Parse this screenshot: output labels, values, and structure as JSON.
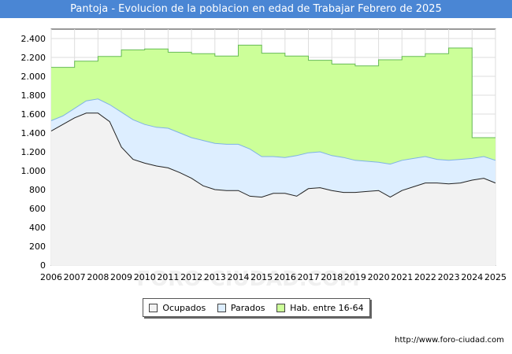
{
  "title": "Pantoja - Evolucion de la poblacion en edad de Trabajar Febrero de 2025",
  "source": "http://www.foro-ciudad.com",
  "watermark": "FORO-CIUDAD.COM",
  "colors": {
    "title_bg": "#4a86d4",
    "ocupados_fill": "#f2f2f2",
    "ocupados_line": "#222222",
    "parados_fill": "#ddeeff",
    "parados_line": "#7fb2e5",
    "hab_fill": "#ccff99",
    "hab_line": "#66bb55"
  },
  "chart_data": {
    "type": "area",
    "title": "Pantoja - Evolucion de la poblacion en edad de Trabajar Febrero de 2025",
    "xlabel": "",
    "ylabel": "",
    "xlim": [
      2006,
      2025
    ],
    "ylim": [
      0,
      2500
    ],
    "grid": true,
    "y_ticks": [
      0,
      200,
      400,
      600,
      800,
      1000,
      1200,
      1400,
      1600,
      1800,
      2000,
      2200,
      2400
    ],
    "y_tick_labels": [
      "0",
      "200",
      "400",
      "600",
      "800",
      "1.000",
      "1.200",
      "1.400",
      "1.600",
      "1.800",
      "2.000",
      "2.200",
      "2.400"
    ],
    "x_ticks": [
      2006,
      2007,
      2008,
      2009,
      2010,
      2011,
      2012,
      2013,
      2014,
      2015,
      2016,
      2017,
      2018,
      2019,
      2020,
      2021,
      2022,
      2023,
      2024,
      2025
    ],
    "x_tick_labels": [
      "2006",
      "2007",
      "2008",
      "2009",
      "2010",
      "2011",
      "2012",
      "2013",
      "2014",
      "2015",
      "2016",
      "2017",
      "2018",
      "2019",
      "2020",
      "2021",
      "2022",
      "2023",
      "2024",
      "2025"
    ],
    "legend_position": "bottom",
    "series": [
      {
        "name": "Hab. entre 16-64",
        "kind": "step",
        "x": [
          2006,
          2007,
          2008,
          2009,
          2010,
          2011,
          2012,
          2013,
          2014,
          2015,
          2016,
          2017,
          2018,
          2019,
          2020,
          2021,
          2022,
          2023,
          2024
        ],
        "values": [
          2095,
          2160,
          2210,
          2280,
          2290,
          2255,
          2240,
          2215,
          2330,
          2245,
          2215,
          2170,
          2130,
          2110,
          2175,
          2210,
          2240,
          2300,
          1350
        ]
      },
      {
        "name": "Parados",
        "kind": "line",
        "x": [
          2006,
          2006.5,
          2007,
          2007.5,
          2008,
          2008.5,
          2009,
          2009.5,
          2010,
          2010.5,
          2011,
          2011.5,
          2012,
          2012.5,
          2013,
          2013.5,
          2014,
          2014.5,
          2015,
          2015.5,
          2016,
          2016.5,
          2017,
          2017.5,
          2018,
          2018.5,
          2019,
          2019.5,
          2020,
          2020.5,
          2021,
          2021.5,
          2022,
          2022.5,
          2023,
          2023.5,
          2024,
          2024.5,
          2025
        ],
        "values": [
          1530,
          1580,
          1660,
          1740,
          1760,
          1700,
          1620,
          1540,
          1490,
          1460,
          1450,
          1400,
          1350,
          1320,
          1290,
          1280,
          1280,
          1230,
          1150,
          1150,
          1140,
          1160,
          1190,
          1200,
          1160,
          1140,
          1110,
          1100,
          1090,
          1070,
          1110,
          1130,
          1150,
          1120,
          1110,
          1120,
          1130,
          1150,
          1110
        ]
      },
      {
        "name": "Ocupados",
        "kind": "line",
        "x": [
          2006,
          2006.5,
          2007,
          2007.5,
          2008,
          2008.5,
          2009,
          2009.5,
          2010,
          2010.5,
          2011,
          2011.5,
          2012,
          2012.5,
          2013,
          2013.5,
          2014,
          2014.5,
          2015,
          2015.5,
          2016,
          2016.5,
          2017,
          2017.5,
          2018,
          2018.5,
          2019,
          2019.5,
          2020,
          2020.5,
          2021,
          2021.5,
          2022,
          2022.5,
          2023,
          2023.5,
          2024,
          2024.5,
          2025
        ],
        "values": [
          1420,
          1490,
          1560,
          1610,
          1610,
          1520,
          1250,
          1120,
          1080,
          1050,
          1030,
          980,
          920,
          840,
          800,
          790,
          790,
          730,
          720,
          760,
          760,
          730,
          810,
          820,
          790,
          770,
          770,
          780,
          790,
          720,
          790,
          830,
          870,
          870,
          860,
          870,
          900,
          920,
          870
        ]
      }
    ]
  },
  "legend": {
    "items": [
      {
        "label": "Ocupados",
        "swatch": "#f2f2f2"
      },
      {
        "label": "Parados",
        "swatch": "#ddeeff"
      },
      {
        "label": "Hab. entre 16-64",
        "swatch": "#ccff99"
      }
    ]
  }
}
